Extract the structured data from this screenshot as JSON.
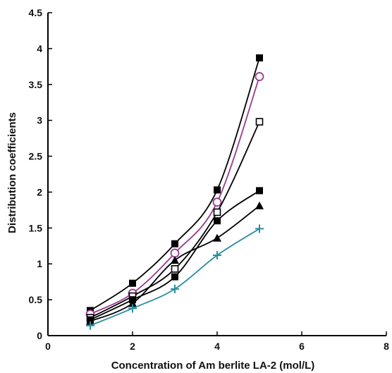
{
  "chart_data": {
    "type": "line",
    "title": "",
    "xlabel": "Concentration of Am berlite LA-2  (mol/L)",
    "ylabel": "Distribution coefficients",
    "xlim": [
      0,
      8
    ],
    "ylim": [
      0,
      4.5
    ],
    "x_ticks": [
      "0",
      "2",
      "4",
      "6",
      "8"
    ],
    "y_ticks": [
      "0",
      "0.5",
      "1",
      "1.5",
      "2",
      "2.5",
      "3",
      "3.5",
      "4",
      "4.5"
    ],
    "grid": false,
    "legend": "none",
    "x": [
      1,
      2,
      3,
      4,
      5
    ],
    "series": [
      {
        "marker": "filled-square",
        "color": "#000000",
        "values": [
          0.35,
          0.73,
          1.28,
          2.03,
          3.87
        ]
      },
      {
        "marker": "open-circle",
        "color": "#9b3a8e",
        "values": [
          0.3,
          0.59,
          1.15,
          1.86,
          3.61
        ]
      },
      {
        "marker": "open-square",
        "color": "#000000",
        "values": [
          0.25,
          0.55,
          0.93,
          1.72,
          2.98
        ]
      },
      {
        "marker": "filled-square",
        "color": "#000000",
        "values": [
          0.22,
          0.5,
          0.82,
          1.6,
          2.02
        ]
      },
      {
        "marker": "filled-triangle",
        "color": "#000000",
        "values": [
          0.2,
          0.45,
          1.05,
          1.36,
          1.81
        ]
      },
      {
        "marker": "plus",
        "color": "#2a8ea0",
        "values": [
          0.14,
          0.38,
          0.65,
          1.12,
          1.49
        ]
      }
    ]
  }
}
